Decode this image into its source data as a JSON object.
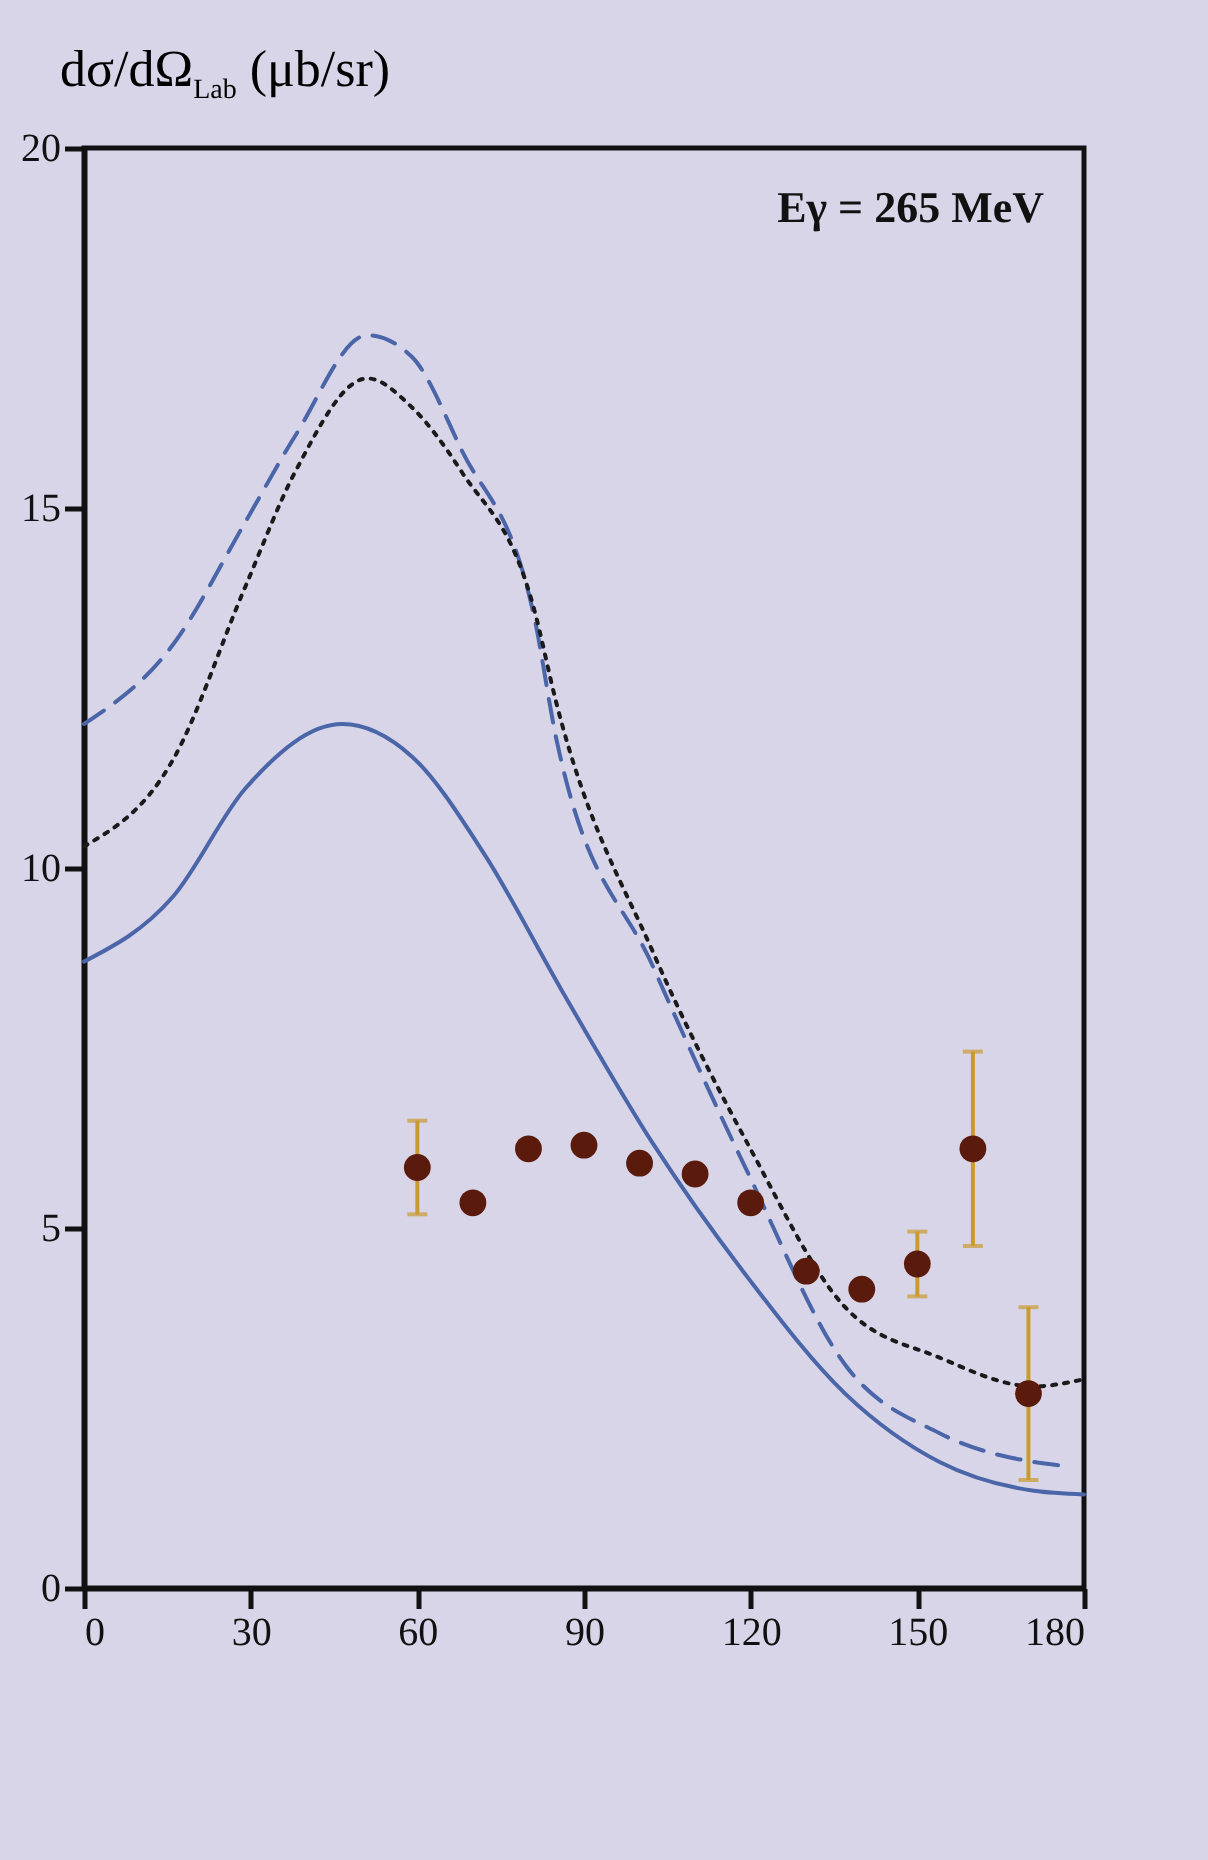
{
  "chart_data": {
    "type": "line",
    "ylabel": "dσ/dΩ$_{Lab}$ (μb/sr)",
    "annotations": [
      "Eγ = 265 MeV"
    ],
    "xlim": [
      0,
      180
    ],
    "xticks": [
      0,
      30,
      60,
      90,
      120,
      150,
      180
    ],
    "ylim": [
      0,
      20
    ],
    "yticks": [
      0,
      5,
      10,
      15,
      20
    ],
    "grid": false,
    "series": [
      {
        "color": "#4a66a8",
        "line_style": "solid",
        "x": [
          0,
          16,
          29,
          46.5,
          59,
          72,
          86,
          102.6,
          119.6,
          137,
          154,
          171,
          180
        ],
        "values": [
          8.7,
          9.6,
          11.1,
          12.0,
          11.55,
          10.2,
          8.3,
          6.15,
          4.3,
          2.7,
          1.75,
          1.35,
          1.3
        ]
      },
      {
        "color": "#4a66a8",
        "line_style": "dashed",
        "x": [
          0,
          16,
          29,
          38,
          51,
          59,
          68,
          81,
          85,
          102.6,
          119.6,
          137,
          154,
          171,
          176
        ],
        "values": [
          12.0,
          13.1,
          14.8,
          16.0,
          17.4,
          17.1,
          15.8,
          13.5,
          11.8,
          8.6,
          5.75,
          3.1,
          2.15,
          1.75,
          1.7
        ]
      },
      {
        "color": "#1a1a1a",
        "line_style": "dotted",
        "x": [
          0,
          16,
          29,
          38,
          51,
          59,
          68,
          81,
          85,
          102.6,
          119.6,
          137,
          154,
          171,
          180
        ],
        "values": [
          10.3,
          11.5,
          13.9,
          15.5,
          16.8,
          16.4,
          15.5,
          13.6,
          12.3,
          8.8,
          6.15,
          3.9,
          3.2,
          2.8,
          2.9
        ]
      },
      {
        "type": "scatter",
        "color": "#5a1a0c",
        "marker": "circle",
        "x": [
          60,
          70,
          80,
          90,
          100,
          110,
          120,
          130,
          140,
          150,
          160,
          170
        ],
        "values": [
          5.84,
          5.35,
          6.1,
          6.15,
          5.9,
          5.75,
          5.35,
          4.4,
          4.15,
          4.5,
          6.1,
          2.7
        ],
        "errors": [
          0.65,
          null,
          null,
          null,
          null,
          null,
          null,
          null,
          null,
          0.45,
          1.35,
          1.2
        ]
      }
    ]
  }
}
